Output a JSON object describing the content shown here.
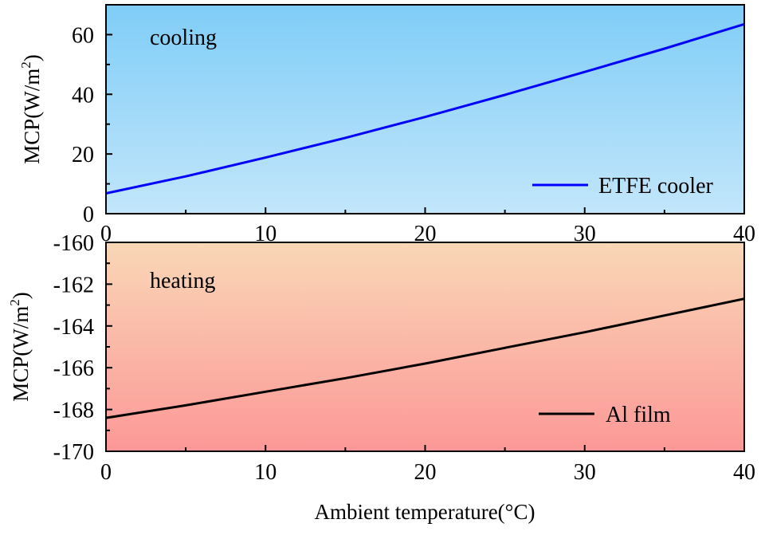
{
  "chart_data": [
    {
      "type": "line",
      "panel": "top",
      "annotation": "cooling",
      "ylabel": "MCP(W/m",
      "ylabel_sup": "2",
      "ylabel_close": ")",
      "xlim": [
        0,
        40
      ],
      "ylim": [
        0,
        70
      ],
      "xticks": [
        0,
        10,
        20,
        30,
        40
      ],
      "yticks": [
        0,
        20,
        40,
        60
      ],
      "x_tick_labels": [
        "0",
        "10",
        "20",
        "30",
        "40"
      ],
      "y_tick_labels": [
        "0",
        "20",
        "40",
        "60"
      ],
      "background_gradient": [
        "#7fcdf8",
        "#c2e6fa"
      ],
      "legend_position": "bottom-right",
      "series": [
        {
          "name": "ETFE cooler",
          "color": "#0000ff",
          "x": [
            0,
            5,
            10,
            15,
            20,
            25,
            30,
            35,
            40
          ],
          "y": [
            6.8,
            12.5,
            18.8,
            25.4,
            32.4,
            39.8,
            47.5,
            55.3,
            63.5
          ]
        }
      ]
    },
    {
      "type": "line",
      "panel": "bottom",
      "annotation": "heating",
      "ylabel": "MCP(W/m",
      "ylabel_sup": "2",
      "ylabel_close": ")",
      "xlabel": "Ambient temperature(°C)",
      "xlim": [
        0,
        40
      ],
      "ylim": [
        -170,
        -160
      ],
      "xticks": [
        0,
        10,
        20,
        30,
        40
      ],
      "yticks": [
        -170,
        -168,
        -166,
        -164,
        -162,
        -160
      ],
      "x_tick_labels": [
        "0",
        "10",
        "20",
        "30",
        "40"
      ],
      "y_tick_labels": [
        "-170",
        "-168",
        "-166",
        "-164",
        "-162",
        "-160"
      ],
      "background_gradient": [
        "#f9d7b6",
        "#fc9897"
      ],
      "legend_position": "bottom-right",
      "series": [
        {
          "name": "Al film",
          "color": "#000000",
          "x": [
            0,
            5,
            10,
            15,
            20,
            25,
            30,
            35,
            40
          ],
          "y": [
            -168.4,
            -167.8,
            -167.15,
            -166.5,
            -165.8,
            -165.05,
            -164.3,
            -163.5,
            -162.7
          ]
        }
      ]
    }
  ]
}
